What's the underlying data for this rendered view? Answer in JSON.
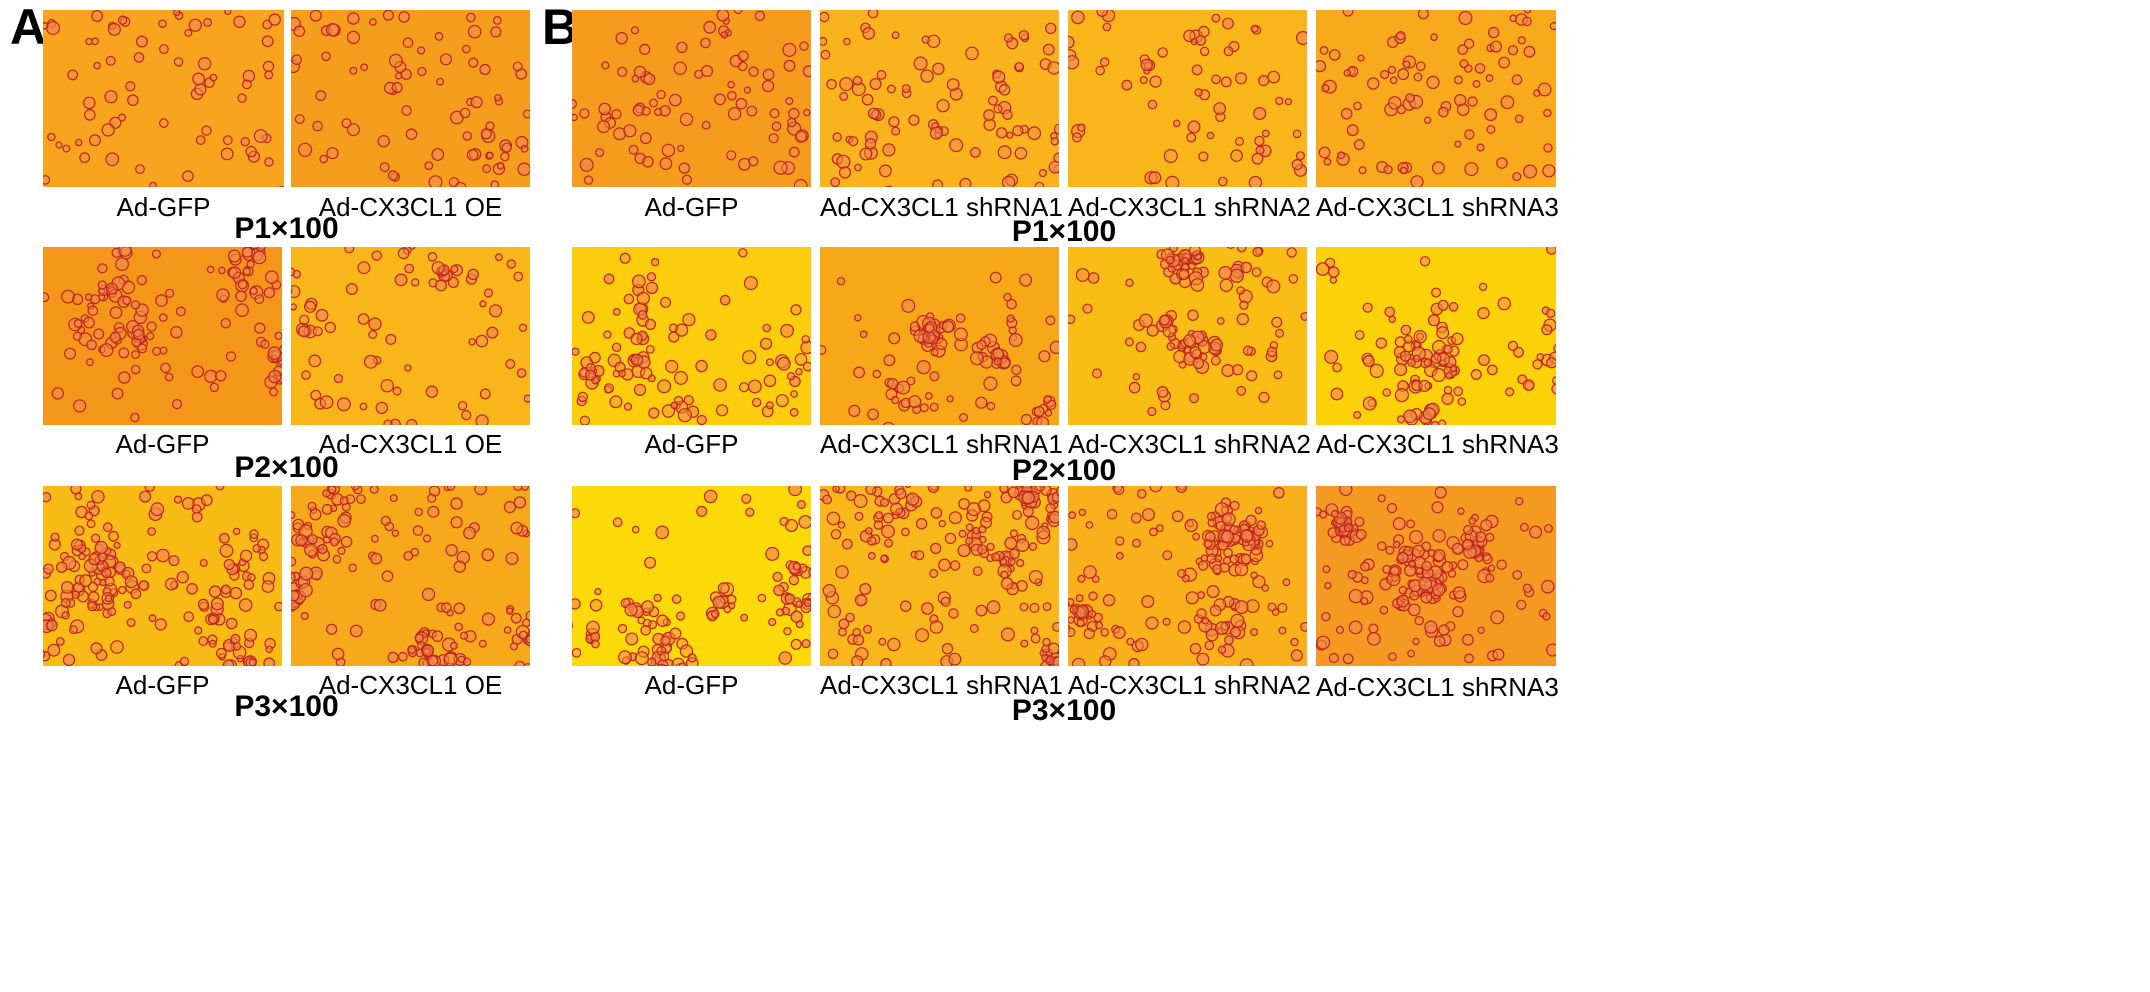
{
  "panels": {
    "a": {
      "letter": "A",
      "columns": [
        "Ad-GFP",
        "Ad-CX3CL1 OE"
      ],
      "rows": [
        {
          "label": "P1×100"
        },
        {
          "label": "P2×100"
        },
        {
          "label": "P3×100"
        }
      ]
    },
    "b": {
      "letter": "B",
      "columns": [
        "Ad-GFP",
        "Ad-CX3CL1 shRNA1",
        "Ad-CX3CL1 shRNA2",
        "Ad-CX3CL1 shRNA3"
      ],
      "rows": [
        {
          "label": "P1×100"
        },
        {
          "label": "P2×100"
        },
        {
          "label": "P3×100"
        }
      ]
    }
  },
  "image": {
    "subject": "light microscopy of cell clusters",
    "colors": {
      "background_orange": "#f7a21b",
      "background_yellow": "#fbd20a",
      "cell_outline": "#c2231c",
      "cell_fill": "#f08a4a"
    }
  }
}
